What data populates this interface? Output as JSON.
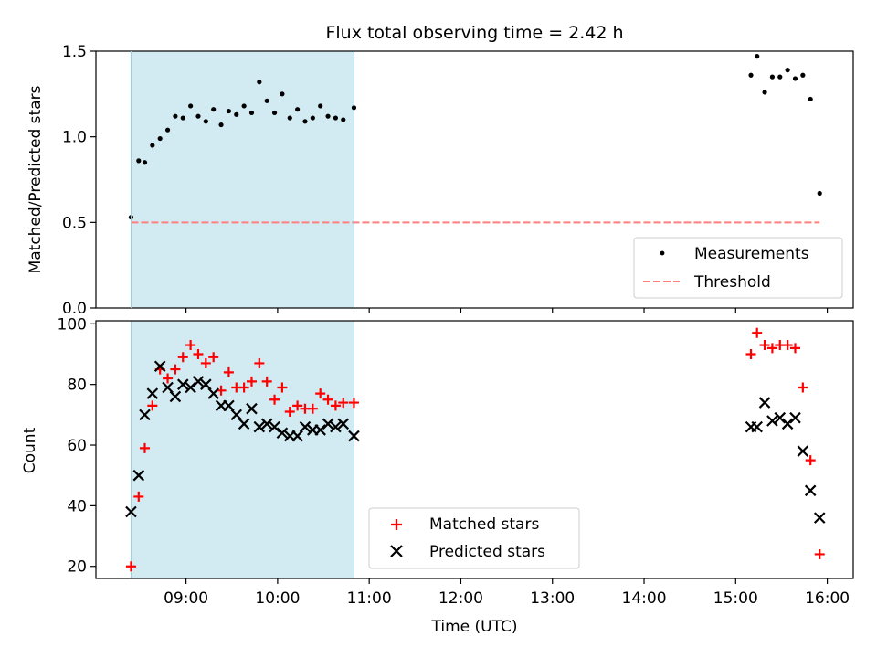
{
  "chart_data": [
    {
      "type": "scatter",
      "title": "Flux total observing time = 2.42 h",
      "xlabel": "",
      "ylabel": "Matched/Predicted stars",
      "xlim": [
        "08:01",
        "16:17"
      ],
      "ylim": [
        0,
        1.5
      ],
      "yticks": [
        "0.0",
        "0.5",
        "1.0",
        "1.5"
      ],
      "shaded_interval": [
        "08:24",
        "10:50"
      ],
      "shade_color": "#add8e6",
      "legend_position": "lower-right",
      "legend": [
        {
          "label": "Measurements",
          "marker": "dot",
          "color": "#000000"
        },
        {
          "label": "Threshold",
          "marker": "dashed-line",
          "color": "#ff7f7f"
        }
      ],
      "threshold": {
        "value": 0.5,
        "x_range": [
          "08:24",
          "15:55"
        ],
        "color": "#ff7f7f"
      },
      "series": [
        {
          "name": "Measurements",
          "color": "#000000",
          "points": [
            [
              "08:24",
              0.53
            ],
            [
              "08:29",
              0.86
            ],
            [
              "08:33",
              0.85
            ],
            [
              "08:38",
              0.95
            ],
            [
              "08:43",
              0.99
            ],
            [
              "08:48",
              1.04
            ],
            [
              "08:53",
              1.12
            ],
            [
              "08:58",
              1.11
            ],
            [
              "09:03",
              1.18
            ],
            [
              "09:08",
              1.12
            ],
            [
              "09:13",
              1.09
            ],
            [
              "09:18",
              1.16
            ],
            [
              "09:23",
              1.07
            ],
            [
              "09:28",
              1.15
            ],
            [
              "09:33",
              1.13
            ],
            [
              "09:38",
              1.18
            ],
            [
              "09:43",
              1.14
            ],
            [
              "09:48",
              1.32
            ],
            [
              "09:53",
              1.21
            ],
            [
              "09:58",
              1.14
            ],
            [
              "10:03",
              1.25
            ],
            [
              "10:08",
              1.11
            ],
            [
              "10:13",
              1.16
            ],
            [
              "10:18",
              1.09
            ],
            [
              "10:23",
              1.11
            ],
            [
              "10:28",
              1.18
            ],
            [
              "10:33",
              1.12
            ],
            [
              "10:38",
              1.11
            ],
            [
              "10:43",
              1.1
            ],
            [
              "10:50",
              1.17
            ],
            [
              "15:10",
              1.36
            ],
            [
              "15:14",
              1.47
            ],
            [
              "15:19",
              1.26
            ],
            [
              "15:24",
              1.35
            ],
            [
              "15:29",
              1.35
            ],
            [
              "15:34",
              1.39
            ],
            [
              "15:39",
              1.34
            ],
            [
              "15:44",
              1.36
            ],
            [
              "15:49",
              1.22
            ],
            [
              "15:55",
              0.67
            ]
          ]
        }
      ]
    },
    {
      "type": "scatter",
      "title": "",
      "xlabel": "Time (UTC)",
      "ylabel": "Count",
      "xlim": [
        "08:01",
        "16:17"
      ],
      "ylim": [
        16,
        101
      ],
      "xticks": [
        "09:00",
        "10:00",
        "11:00",
        "12:00",
        "13:00",
        "14:00",
        "15:00",
        "16:00"
      ],
      "yticks": [
        "20",
        "40",
        "60",
        "80",
        "100"
      ],
      "shaded_interval": [
        "08:24",
        "10:50"
      ],
      "shade_color": "#add8e6",
      "legend_position": "lower-center",
      "legend": [
        {
          "label": "Matched stars",
          "marker": "plus",
          "color": "#ff0000"
        },
        {
          "label": "Predicted stars",
          "marker": "x",
          "color": "#000000"
        }
      ],
      "series": [
        {
          "name": "Matched stars",
          "marker": "plus",
          "color": "#ff0000",
          "points": [
            [
              "08:24",
              20
            ],
            [
              "08:29",
              43
            ],
            [
              "08:33",
              59
            ],
            [
              "08:38",
              73
            ],
            [
              "08:43",
              85
            ],
            [
              "08:48",
              82
            ],
            [
              "08:53",
              85
            ],
            [
              "08:58",
              89
            ],
            [
              "09:03",
              93
            ],
            [
              "09:08",
              90
            ],
            [
              "09:13",
              87
            ],
            [
              "09:18",
              89
            ],
            [
              "09:23",
              78
            ],
            [
              "09:28",
              84
            ],
            [
              "09:33",
              79
            ],
            [
              "09:38",
              79
            ],
            [
              "09:43",
              81
            ],
            [
              "09:48",
              87
            ],
            [
              "09:53",
              81
            ],
            [
              "09:58",
              75
            ],
            [
              "10:03",
              79
            ],
            [
              "10:08",
              71
            ],
            [
              "10:13",
              73
            ],
            [
              "10:18",
              72
            ],
            [
              "10:23",
              72
            ],
            [
              "10:28",
              77
            ],
            [
              "10:33",
              75
            ],
            [
              "10:38",
              73
            ],
            [
              "10:43",
              74
            ],
            [
              "10:50",
              74
            ],
            [
              "15:10",
              90
            ],
            [
              "15:14",
              97
            ],
            [
              "15:19",
              93
            ],
            [
              "15:24",
              92
            ],
            [
              "15:29",
              93
            ],
            [
              "15:34",
              93
            ],
            [
              "15:39",
              92
            ],
            [
              "15:44",
              79
            ],
            [
              "15:49",
              55
            ],
            [
              "15:55",
              24
            ]
          ]
        },
        {
          "name": "Predicted stars",
          "marker": "x",
          "color": "#000000",
          "points": [
            [
              "08:24",
              38
            ],
            [
              "08:29",
              50
            ],
            [
              "08:33",
              70
            ],
            [
              "08:38",
              77
            ],
            [
              "08:43",
              86
            ],
            [
              "08:48",
              79
            ],
            [
              "08:53",
              76
            ],
            [
              "08:58",
              80
            ],
            [
              "09:03",
              79
            ],
            [
              "09:08",
              81
            ],
            [
              "09:13",
              80
            ],
            [
              "09:18",
              77
            ],
            [
              "09:23",
              73
            ],
            [
              "09:28",
              73
            ],
            [
              "09:33",
              70
            ],
            [
              "09:38",
              67
            ],
            [
              "09:43",
              72
            ],
            [
              "09:48",
              66
            ],
            [
              "09:53",
              67
            ],
            [
              "09:58",
              66
            ],
            [
              "10:03",
              64
            ],
            [
              "10:08",
              63
            ],
            [
              "10:13",
              63
            ],
            [
              "10:18",
              66
            ],
            [
              "10:23",
              65
            ],
            [
              "10:28",
              65
            ],
            [
              "10:33",
              67
            ],
            [
              "10:38",
              66
            ],
            [
              "10:43",
              67
            ],
            [
              "10:50",
              63
            ],
            [
              "15:10",
              66
            ],
            [
              "15:14",
              66
            ],
            [
              "15:19",
              74
            ],
            [
              "15:24",
              68
            ],
            [
              "15:29",
              69
            ],
            [
              "15:34",
              67
            ],
            [
              "15:39",
              69
            ],
            [
              "15:44",
              58
            ],
            [
              "15:49",
              45
            ],
            [
              "15:55",
              36
            ]
          ]
        }
      ]
    }
  ]
}
